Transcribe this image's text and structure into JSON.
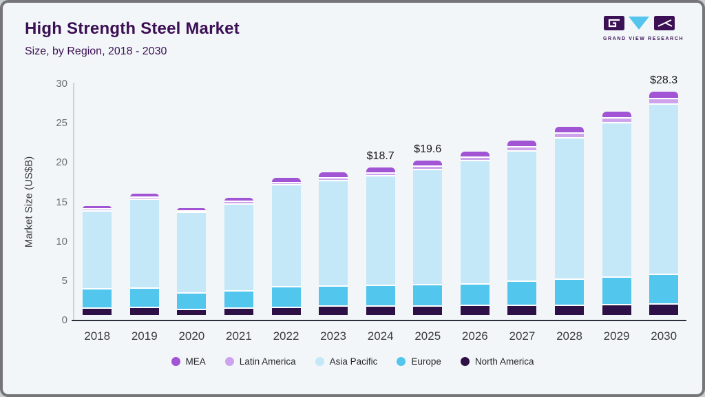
{
  "header": {
    "title_ref": "see chart_data.title",
    "subtitle_ref": "see chart_data.subtitle"
  },
  "logo": {
    "text": "GRAND VIEW RESEARCH",
    "brand_purple": "#3c1054",
    "brand_blue": "#56c5ee"
  },
  "theme": {
    "card_background": "#f2f6f9",
    "card_border": "#767678",
    "title_color": "#3c1054",
    "axis_line_color": "#2e2e3a",
    "tick_text_color": "#6a6f75"
  },
  "chart_data": {
    "type": "bar",
    "stacked": true,
    "title": "High Strength Steel Market",
    "subtitle": "Size, by Region, 2018 - 2030",
    "ylabel": "Market Size (US$B)",
    "units": "US$B",
    "ylim": [
      0,
      30
    ],
    "yticks": [
      0,
      5,
      10,
      15,
      20,
      25,
      30
    ],
    "grid": false,
    "legend_position": "bottom",
    "legend_order": [
      "MEA",
      "Latin America",
      "Asia Pacific",
      "Europe",
      "North America"
    ],
    "categories": [
      "2018",
      "2019",
      "2020",
      "2021",
      "2022",
      "2023",
      "2024",
      "2025",
      "2026",
      "2027",
      "2028",
      "2029",
      "2030"
    ],
    "series": [
      {
        "name": "North America",
        "color": "#2d1045",
        "values": [
          0.9,
          1.0,
          0.7,
          0.9,
          1.0,
          1.1,
          1.1,
          1.1,
          1.2,
          1.2,
          1.25,
          1.3,
          1.4
        ]
      },
      {
        "name": "Europe",
        "color": "#53c6ee",
        "values": [
          2.4,
          2.4,
          2.1,
          2.2,
          2.55,
          2.6,
          2.7,
          2.75,
          2.7,
          3.05,
          3.3,
          3.5,
          3.8
        ]
      },
      {
        "name": "Asia Pacific",
        "color": "#c4e8f8",
        "values": [
          9.9,
          11.3,
          10.2,
          11.0,
          13.0,
          13.4,
          13.85,
          14.6,
          15.7,
          16.6,
          17.9,
          19.6,
          21.6
        ]
      },
      {
        "name": "Latin America",
        "color": "#cda4ec",
        "values": [
          0.25,
          0.3,
          0.25,
          0.35,
          0.25,
          0.35,
          0.4,
          0.4,
          0.45,
          0.5,
          0.6,
          0.6,
          0.7
        ]
      },
      {
        "name": "MEA",
        "color": "#a155d4",
        "values": [
          0.35,
          0.4,
          0.35,
          0.4,
          0.6,
          0.65,
          0.65,
          0.75,
          0.7,
          0.75,
          0.8,
          0.8,
          0.8
        ]
      }
    ],
    "totals": [
      13.8,
      15.4,
      13.6,
      14.85,
      17.4,
      18.1,
      18.7,
      19.6,
      20.75,
      22.1,
      23.85,
      25.8,
      28.3
    ],
    "value_labels": {
      "2024": "$18.7",
      "2025": "$19.6",
      "2030": "$28.3"
    }
  }
}
